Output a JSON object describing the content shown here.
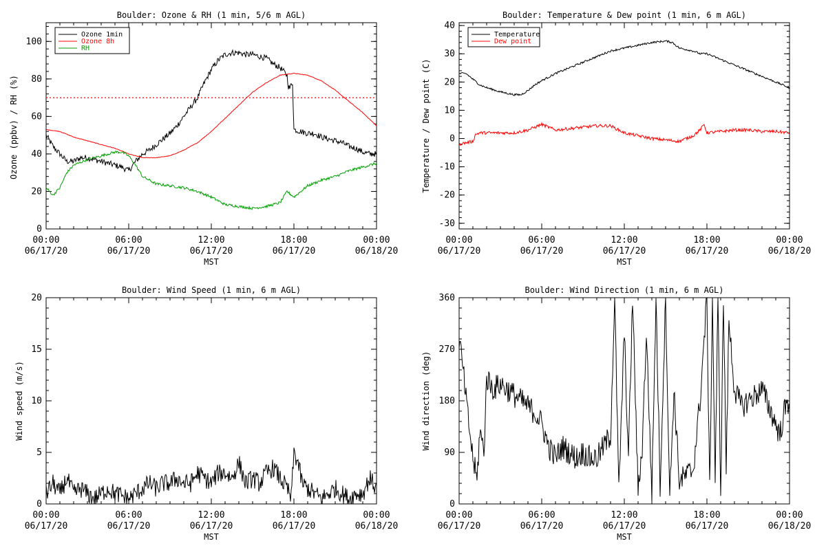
{
  "chart_data": [
    {
      "id": "ozone_rh",
      "type": "line",
      "title": "Boulder: Ozone & RH (1 min, 5/6 m AGL)",
      "xlabel": "MST",
      "ylabel": "Ozone (ppbv) / RH (%)",
      "ylim": [
        0,
        110
      ],
      "yticks": [
        0,
        20,
        40,
        60,
        80,
        100
      ],
      "x_hours_range": [
        0,
        24
      ],
      "x_ticks": [
        {
          "h": 0,
          "time": "00:00",
          "date": "06/17/20"
        },
        {
          "h": 6,
          "time": "06:00",
          "date": "06/17/20"
        },
        {
          "h": 12,
          "time": "12:00",
          "date": "06/17/20"
        },
        {
          "h": 18,
          "time": "18:00",
          "date": "06/17/20"
        },
        {
          "h": 24,
          "time": "00:00",
          "date": "06/18/20"
        }
      ],
      "legend_position": "top-left",
      "reference_line": {
        "y": 70,
        "color": "#ff0000",
        "style": "dotted"
      },
      "series": [
        {
          "name": "Ozone 1min",
          "color": "#000000",
          "x": [
            0,
            0.5,
            1,
            1.5,
            2,
            2.5,
            3,
            3.5,
            4,
            4.5,
            5,
            5.5,
            6,
            6.5,
            7,
            7.5,
            8,
            8.5,
            9,
            9.5,
            10,
            10.5,
            11,
            11.5,
            12,
            12.5,
            13,
            13.5,
            14,
            14.5,
            15,
            15.5,
            16,
            16.5,
            17,
            17.5,
            17.6,
            17.7,
            17.8,
            17.9,
            18,
            18.5,
            19,
            19.5,
            20,
            20.5,
            21,
            21.5,
            22,
            22.5,
            23,
            23.5,
            24
          ],
          "y": [
            50,
            44,
            40,
            36,
            36,
            38,
            38,
            37,
            36,
            35,
            34,
            33,
            31,
            36,
            40,
            42,
            45,
            48,
            51,
            55,
            60,
            65,
            70,
            78,
            85,
            90,
            93,
            94,
            94,
            93,
            93,
            92,
            91,
            88,
            86,
            82,
            76,
            75,
            77,
            78,
            53,
            52,
            51,
            51,
            49,
            48,
            47,
            46,
            44,
            43,
            41,
            40,
            40
          ]
        },
        {
          "name": "Ozone 8h",
          "color": "#ff0000",
          "x": [
            0,
            1,
            2,
            3,
            4,
            5,
            6,
            7,
            8,
            9,
            10,
            11,
            12,
            13,
            14,
            15,
            16,
            17,
            18,
            19,
            20,
            21,
            22,
            23,
            24
          ],
          "y": [
            53,
            52,
            49,
            47,
            45,
            43,
            40,
            38,
            38,
            39,
            42,
            46,
            52,
            59,
            66,
            73,
            78,
            82,
            83,
            82,
            79,
            74,
            68,
            62,
            55
          ]
        },
        {
          "name": "RH",
          "color": "#00a000",
          "x": [
            0,
            0.5,
            1,
            1.5,
            2,
            3,
            4,
            5,
            5.5,
            6,
            6.5,
            7,
            8,
            9,
            10,
            11,
            12,
            13,
            14,
            15,
            16,
            17,
            17.5,
            18,
            19,
            20,
            21,
            22,
            23,
            24
          ],
          "y": [
            22,
            18,
            22,
            30,
            34,
            37,
            39,
            41,
            41,
            39,
            34,
            28,
            24,
            23,
            22,
            20,
            17,
            13,
            12,
            11,
            12,
            14,
            20,
            17,
            23,
            26,
            28,
            31,
            33,
            35
          ]
        }
      ]
    },
    {
      "id": "temp_dew",
      "type": "line",
      "title": "Boulder: Temperature & Dew point (1 min, 6 m AGL)",
      "xlabel": "MST",
      "ylabel": "Temperature / Dew point (C)",
      "ylim": [
        -32,
        41
      ],
      "yticks": [
        -30,
        -20,
        -10,
        0,
        10,
        20,
        30,
        40
      ],
      "x_hours_range": [
        0,
        24
      ],
      "x_ticks": [
        {
          "h": 0,
          "time": "00:00",
          "date": "06/17/20"
        },
        {
          "h": 6,
          "time": "06:00",
          "date": "06/17/20"
        },
        {
          "h": 12,
          "time": "12:00",
          "date": "06/17/20"
        },
        {
          "h": 18,
          "time": "18:00",
          "date": "06/17/20"
        },
        {
          "h": 24,
          "time": "00:00",
          "date": "06/18/20"
        }
      ],
      "legend_position": "top-left",
      "series": [
        {
          "name": "Temperature",
          "color": "#000000",
          "x": [
            0,
            0.5,
            1,
            1.5,
            2,
            3,
            4,
            4.5,
            5,
            5.5,
            6,
            7,
            8,
            9,
            10,
            11,
            12,
            13,
            14,
            15,
            15.5,
            16,
            17,
            17.5,
            18,
            19,
            20,
            21,
            22,
            23,
            24
          ],
          "y": [
            23,
            23,
            21,
            19,
            18,
            16.5,
            15.5,
            15.5,
            17,
            19,
            20.5,
            23,
            25,
            27,
            29,
            31,
            32,
            33,
            34,
            34.5,
            34,
            32,
            31,
            30,
            30,
            28,
            26,
            24,
            22,
            20,
            18
          ]
        },
        {
          "name": "Dew point",
          "color": "#ff0000",
          "x": [
            0,
            0.5,
            1,
            1.2,
            1.5,
            2,
            3,
            4,
            5,
            5.5,
            6,
            6.5,
            7,
            8,
            9,
            10,
            11,
            12,
            13,
            14,
            15,
            16,
            17,
            17.5,
            17.8,
            18,
            19,
            20,
            21,
            22,
            23,
            24
          ],
          "y": [
            -2,
            -1.5,
            -1,
            1.5,
            2,
            2,
            2,
            2,
            3,
            4,
            5,
            4,
            3,
            3.5,
            4,
            4.5,
            4.5,
            2,
            1,
            0,
            -0.5,
            -1,
            1,
            3,
            5,
            2,
            2.5,
            3,
            3,
            2.5,
            2.5,
            2
          ]
        }
      ]
    },
    {
      "id": "wind_speed",
      "type": "line",
      "title": "Boulder: Wind Speed (1 min, 6 m AGL)",
      "xlabel": "MST",
      "ylabel": "Wind speed (m/s)",
      "ylim": [
        0,
        20
      ],
      "yticks": [
        0,
        5,
        10,
        15,
        20
      ],
      "x_hours_range": [
        0,
        24
      ],
      "x_ticks": [
        {
          "h": 0,
          "time": "00:00",
          "date": "06/17/20"
        },
        {
          "h": 6,
          "time": "06:00",
          "date": "06/17/20"
        },
        {
          "h": 12,
          "time": "12:00",
          "date": "06/17/20"
        },
        {
          "h": 18,
          "time": "18:00",
          "date": "06/17/20"
        },
        {
          "h": 24,
          "time": "00:00",
          "date": "06/18/20"
        }
      ],
      "series": [
        {
          "color": "#000000",
          "x": [
            0,
            0.5,
            1,
            1.5,
            2,
            2.5,
            3,
            3.5,
            4,
            4.5,
            5,
            5.5,
            6,
            6.5,
            7,
            7.5,
            8,
            8.5,
            9,
            9.5,
            10,
            10.5,
            11,
            11.5,
            12,
            12.5,
            13,
            13.5,
            14,
            14.5,
            15,
            15.5,
            16,
            16.5,
            17,
            17.5,
            17.8,
            18,
            18.3,
            18.6,
            19,
            19.5,
            20,
            20.5,
            21,
            21.5,
            22,
            22.5,
            23,
            23.5,
            24
          ],
          "y": [
            1,
            2,
            1,
            2.5,
            1,
            1.5,
            1,
            0.5,
            1,
            1.5,
            1,
            0.8,
            0.5,
            1,
            1.5,
            2,
            1.5,
            2,
            2,
            2.5,
            2,
            2,
            3,
            2.5,
            2,
            3,
            3,
            2.5,
            4,
            2,
            2.5,
            2,
            3,
            3.5,
            2.5,
            1.5,
            0.5,
            5,
            4,
            2,
            1.5,
            1,
            0.5,
            1,
            1.5,
            1,
            0.5,
            1,
            1,
            2.5,
            1.5
          ]
        }
      ]
    },
    {
      "id": "wind_dir",
      "type": "line",
      "title": "Boulder: Wind Direction (1 min, 6 m AGL)",
      "xlabel": "MST",
      "ylabel": "Wind direction (deg)",
      "ylim": [
        0,
        360
      ],
      "yticks": [
        0,
        90,
        180,
        270,
        360
      ],
      "x_hours_range": [
        0,
        24
      ],
      "x_ticks": [
        {
          "h": 0,
          "time": "00:00",
          "date": "06/17/20"
        },
        {
          "h": 6,
          "time": "06:00",
          "date": "06/17/20"
        },
        {
          "h": 12,
          "time": "12:00",
          "date": "06/17/20"
        },
        {
          "h": 18,
          "time": "18:00",
          "date": "06/17/20"
        },
        {
          "h": 24,
          "time": "00:00",
          "date": "06/18/20"
        }
      ],
      "series": [
        {
          "color": "#000000",
          "x": [
            0,
            0.3,
            0.6,
            1,
            1.3,
            1.5,
            1.8,
            2,
            2.5,
            3,
            3.5,
            4,
            4.5,
            5,
            5.5,
            6,
            6.5,
            7,
            7.5,
            8,
            8.5,
            9,
            9.5,
            10,
            10.5,
            11,
            11.3,
            11.6,
            12,
            12.3,
            12.6,
            13,
            13.3,
            13.6,
            14,
            14.3,
            14.6,
            15,
            15.3,
            15.6,
            16,
            16.5,
            17,
            17.5,
            18,
            18.2,
            18.4,
            18.6,
            18.8,
            19,
            19.2,
            19.4,
            19.6,
            20,
            20.5,
            21,
            21.5,
            22,
            22.5,
            23,
            23.3,
            23.6,
            24
          ],
          "y": [
            290,
            230,
            160,
            80,
            40,
            130,
            90,
            220,
            200,
            210,
            200,
            190,
            180,
            170,
            160,
            140,
            100,
            80,
            100,
            90,
            80,
            90,
            80,
            80,
            100,
            120,
            360,
            20,
            300,
            80,
            360,
            20,
            100,
            300,
            20,
            360,
            30,
            360,
            10,
            200,
            40,
            50,
            60,
            180,
            360,
            20,
            360,
            40,
            360,
            20,
            360,
            60,
            320,
            200,
            170,
            180,
            190,
            200,
            170,
            140,
            120,
            160,
            180
          ]
        }
      ]
    }
  ]
}
